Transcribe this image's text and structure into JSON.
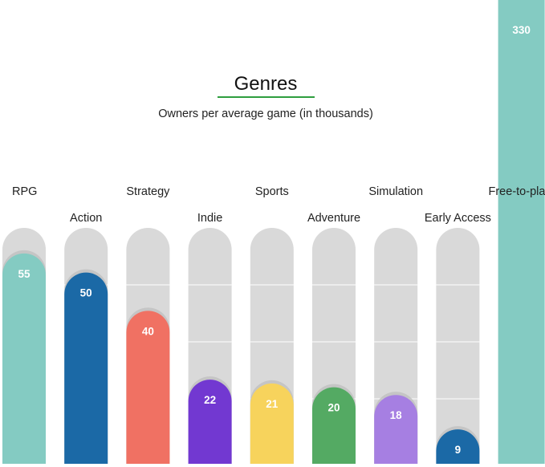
{
  "chart_data": {
    "type": "bar",
    "title": "Genres",
    "subtitle": "Owners per average game (in thousands)",
    "categories": [
      "RPG",
      "Action",
      "Strategy",
      "Indie",
      "Sports",
      "Adventure",
      "Simulation",
      "Early Access",
      "Free-to-play"
    ],
    "values": [
      55,
      50,
      40,
      22,
      21,
      20,
      18,
      9,
      330
    ],
    "value_labels": [
      "55",
      "50",
      "40",
      "22",
      "21",
      "20",
      "18",
      "9",
      "330"
    ],
    "colors": [
      "#84cbc2",
      "#1b69a6",
      "#f07163",
      "#7238d1",
      "#f7d35c",
      "#54aa63",
      "#a67fe2",
      "#1b69a6",
      "#84cbc2"
    ],
    "track_color": "#d9d9d9",
    "title_underline_color": "#2e9e3e",
    "ylim": [
      0,
      60
    ],
    "grid": false,
    "legend": "none"
  }
}
